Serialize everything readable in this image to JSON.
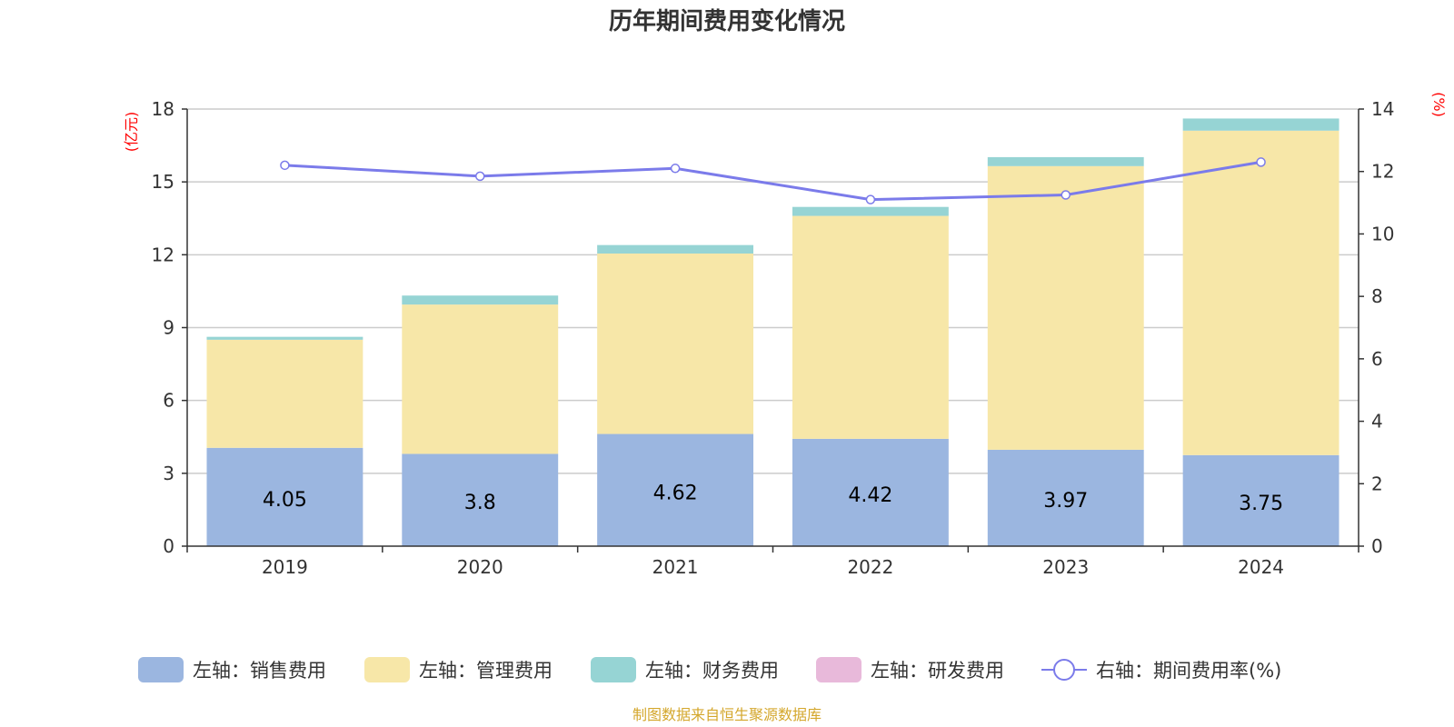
{
  "chart_data": {
    "type": "bar",
    "title": "历年期间费用变化情况",
    "left_unit": "(亿元)",
    "right_unit": "(%)",
    "categories": [
      "2019",
      "2020",
      "2021",
      "2022",
      "2023",
      "2024"
    ],
    "left_axis": {
      "ylim": [
        0,
        18
      ],
      "ticks": [
        "0",
        "3",
        "6",
        "9",
        "12",
        "15",
        "18"
      ]
    },
    "right_axis": {
      "ylim": [
        0,
        14
      ],
      "ticks": [
        "0",
        "2",
        "4",
        "6",
        "8",
        "10",
        "12",
        "14"
      ]
    },
    "series": [
      {
        "name": "左轴：销售费用",
        "kind": "bar",
        "axis": "left",
        "color": "#9bb6e0",
        "values": [
          4.05,
          3.8,
          4.62,
          4.42,
          3.97,
          3.75
        ],
        "labels": [
          "4.05",
          "3.8",
          "4.62",
          "4.42",
          "3.97",
          "3.75"
        ]
      },
      {
        "name": "左轴：管理费用",
        "kind": "bar",
        "axis": "left",
        "color": "#f7e7a8",
        "values": [
          4.45,
          6.15,
          7.43,
          9.18,
          11.68,
          13.36
        ]
      },
      {
        "name": "左轴：财务费用",
        "kind": "bar",
        "axis": "left",
        "color": "#96d4d4",
        "values": [
          0.12,
          0.37,
          0.35,
          0.37,
          0.37,
          0.5
        ]
      },
      {
        "name": "左轴：研发费用",
        "kind": "bar",
        "axis": "left",
        "color": "#e8b9da",
        "values": [
          0,
          0,
          0,
          0,
          0,
          0
        ]
      },
      {
        "name": "右轴：期间费用率(%)",
        "kind": "line",
        "axis": "right",
        "color": "#7b7bea",
        "values": [
          12.2,
          11.85,
          12.1,
          11.1,
          11.25,
          12.3
        ]
      }
    ],
    "grid": true,
    "legend": "bottom",
    "source": "制图数据来自恒生聚源数据库"
  }
}
